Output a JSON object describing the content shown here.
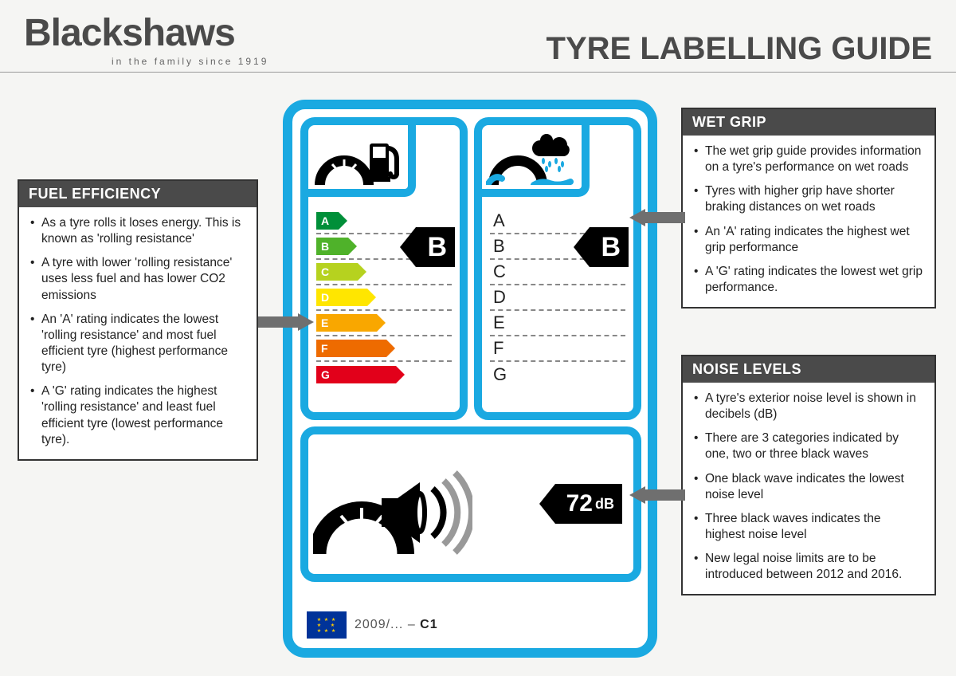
{
  "header": {
    "brand": "Blackshaws",
    "tagline": "in the family since 1919",
    "title": "TYRE LABELLING GUIDE"
  },
  "colors": {
    "frame_blue": "#1aa9e1",
    "callout_bg": "#ffffff",
    "callout_border": "#333333",
    "callout_header_bg": "#4a4a4a",
    "callout_header_fg": "#ffffff",
    "pointer_bg": "#000000",
    "eu_flag_bg": "#003399",
    "eu_flag_stars": "#ffcc00",
    "arrow_grey": "#6f6f6f"
  },
  "callouts": {
    "fuel": {
      "title": "FUEL EFFICIENCY",
      "items": [
        "As a tyre rolls it loses energy. This is known as 'rolling resistance'",
        "A tyre with lower 'rolling resistance' uses less fuel and has lower CO2 emissions",
        "An 'A' rating indicates the lowest 'rolling resistance' and most fuel efficient tyre (highest performance tyre)",
        "A 'G' rating indicates the highest 'rolling resistance' and least fuel efficient tyre (lowest performance tyre)."
      ]
    },
    "wet": {
      "title": "WET GRIP",
      "items": [
        "The wet grip guide provides information on a tyre's performance on wet roads",
        "Tyres with higher grip have shorter braking distances on wet roads",
        "An 'A' rating indicates the highest wet grip performance",
        "A 'G' rating indicates the lowest wet grip performance."
      ]
    },
    "noise": {
      "title": "NOISE LEVELS",
      "items": [
        "A tyre's exterior noise level is shown in decibels (dB)",
        "There are 3 categories indicated by one, two or three black waves",
        "One black wave indicates the lowest noise level",
        "Three black waves indicates the highest noise level",
        "New legal noise limits are to be introduced between 2012 and 2016."
      ]
    }
  },
  "label": {
    "fuel": {
      "grades": [
        {
          "letter": "A",
          "color": "#008f39",
          "width": 28
        },
        {
          "letter": "B",
          "color": "#4fb22a",
          "width": 40
        },
        {
          "letter": "C",
          "color": "#b6d21f",
          "width": 52
        },
        {
          "letter": "D",
          "color": "#ffe600",
          "width": 64
        },
        {
          "letter": "E",
          "color": "#f9a700",
          "width": 76
        },
        {
          "letter": "F",
          "color": "#ee6b00",
          "width": 88
        },
        {
          "letter": "G",
          "color": "#e2001a",
          "width": 100
        }
      ],
      "selected": "B"
    },
    "wet": {
      "grades": [
        "A",
        "B",
        "C",
        "D",
        "E",
        "F",
        "G"
      ],
      "selected": "B"
    },
    "noise": {
      "value": "72",
      "unit": "dB",
      "waves_filled": 1,
      "waves_total": 3
    },
    "regulation": {
      "prefix": "2009/... – ",
      "class": "C1"
    }
  }
}
